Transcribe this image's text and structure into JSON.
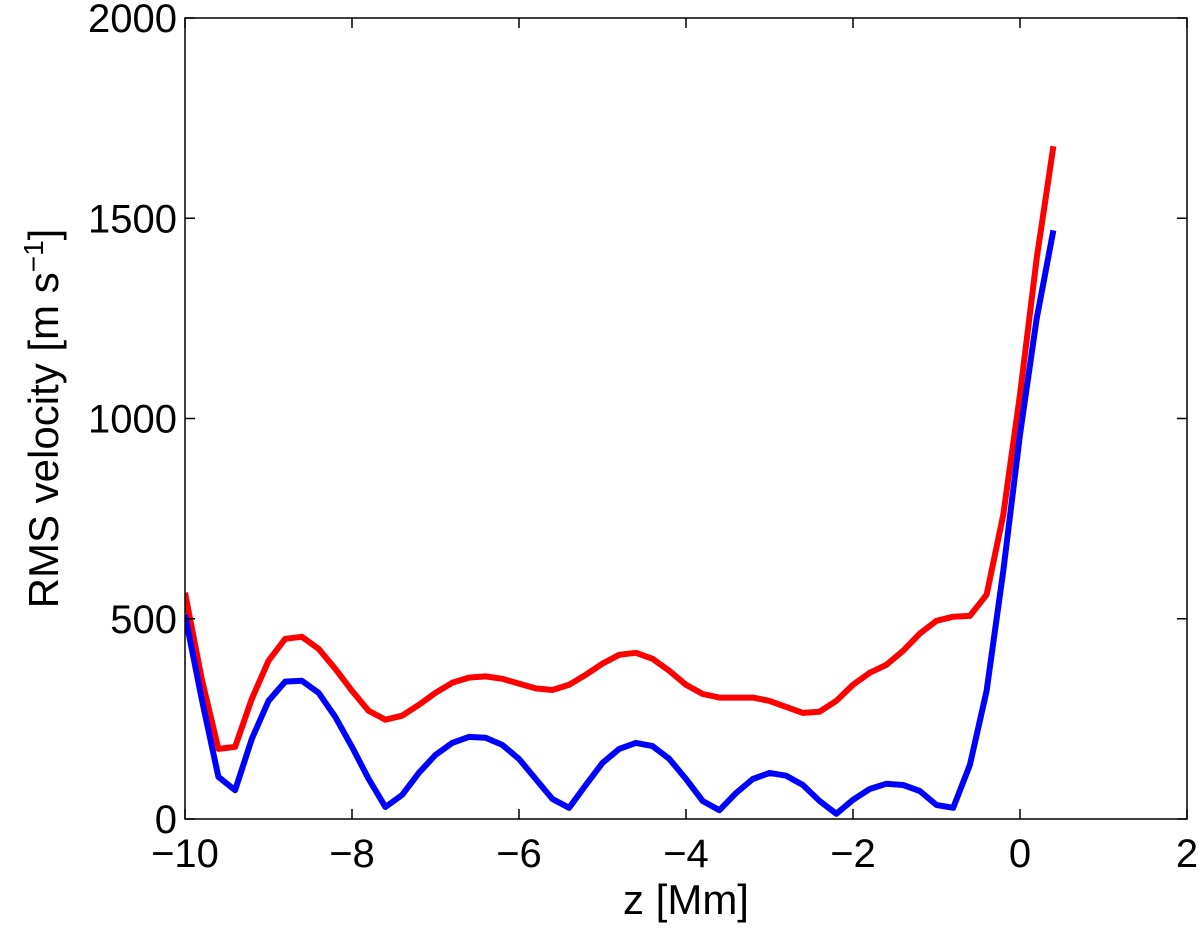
{
  "chart_data": {
    "type": "line",
    "title": "",
    "xlabel": "z [Mm]",
    "ylabel": {
      "main": "RMS velocity [m s",
      "superscript": "−1",
      "close": "]"
    },
    "xlim": [
      -10,
      2
    ],
    "ylim": [
      0,
      2000
    ],
    "xticks": [
      -10,
      -8,
      -6,
      -4,
      -2,
      0,
      2
    ],
    "yticks": [
      0,
      500,
      1000,
      1500,
      2000
    ],
    "xtick_labels": [
      "−10",
      "−8",
      "−6",
      "−4",
      "−2",
      "0",
      "2"
    ],
    "ytick_labels": [
      "0",
      "500",
      "1000",
      "1500",
      "2000"
    ],
    "grid": false,
    "legend": "none",
    "series": [
      {
        "color": "#ff0000",
        "x": [
          -10,
          -9.8,
          -9.6,
          -9.4,
          -9.2,
          -9.0,
          -8.8,
          -8.6,
          -8.4,
          -8.2,
          -8.0,
          -7.8,
          -7.6,
          -7.4,
          -7.2,
          -7.0,
          -6.8,
          -6.6,
          -6.4,
          -6.2,
          -6.0,
          -5.8,
          -5.6,
          -5.4,
          -5.2,
          -5.0,
          -4.8,
          -4.6,
          -4.4,
          -4.2,
          -4.0,
          -3.8,
          -3.6,
          -3.4,
          -3.2,
          -3.0,
          -2.8,
          -2.6,
          -2.4,
          -2.2,
          -2.0,
          -1.8,
          -1.6,
          -1.4,
          -1.2,
          -1.0,
          -0.8,
          -0.6,
          -0.4,
          -0.2,
          0.0,
          0.2,
          0.4
        ],
        "y": [
          565,
          350,
          175,
          180,
          300,
          395,
          450,
          455,
          425,
          375,
          320,
          270,
          248,
          258,
          285,
          315,
          340,
          353,
          356,
          350,
          338,
          326,
          322,
          335,
          360,
          388,
          410,
          415,
          400,
          370,
          335,
          312,
          303,
          303,
          303,
          295,
          280,
          265,
          268,
          295,
          335,
          365,
          385,
          420,
          463,
          495,
          505,
          507,
          560,
          760,
          1060,
          1400,
          1680
        ]
      },
      {
        "color": "#0000ff",
        "x": [
          -10,
          -9.8,
          -9.6,
          -9.4,
          -9.2,
          -9.0,
          -8.8,
          -8.6,
          -8.4,
          -8.2,
          -8.0,
          -7.8,
          -7.6,
          -7.4,
          -7.2,
          -7.0,
          -6.8,
          -6.6,
          -6.4,
          -6.2,
          -6.0,
          -5.8,
          -5.6,
          -5.4,
          -5.2,
          -5.0,
          -4.8,
          -4.6,
          -4.4,
          -4.2,
          -4.0,
          -3.8,
          -3.6,
          -3.4,
          -3.2,
          -3.0,
          -2.8,
          -2.6,
          -2.4,
          -2.2,
          -2.0,
          -1.8,
          -1.6,
          -1.4,
          -1.2,
          -1.0,
          -0.8,
          -0.6,
          -0.4,
          -0.2,
          0.0,
          0.2,
          0.4
        ],
        "y": [
          510,
          300,
          105,
          72,
          200,
          295,
          343,
          345,
          315,
          255,
          180,
          100,
          30,
          60,
          115,
          160,
          190,
          205,
          203,
          185,
          150,
          100,
          50,
          28,
          85,
          140,
          175,
          190,
          182,
          150,
          100,
          45,
          22,
          65,
          100,
          115,
          108,
          85,
          45,
          13,
          48,
          75,
          88,
          85,
          70,
          35,
          28,
          135,
          320,
          620,
          960,
          1250,
          1470
        ]
      }
    ]
  }
}
